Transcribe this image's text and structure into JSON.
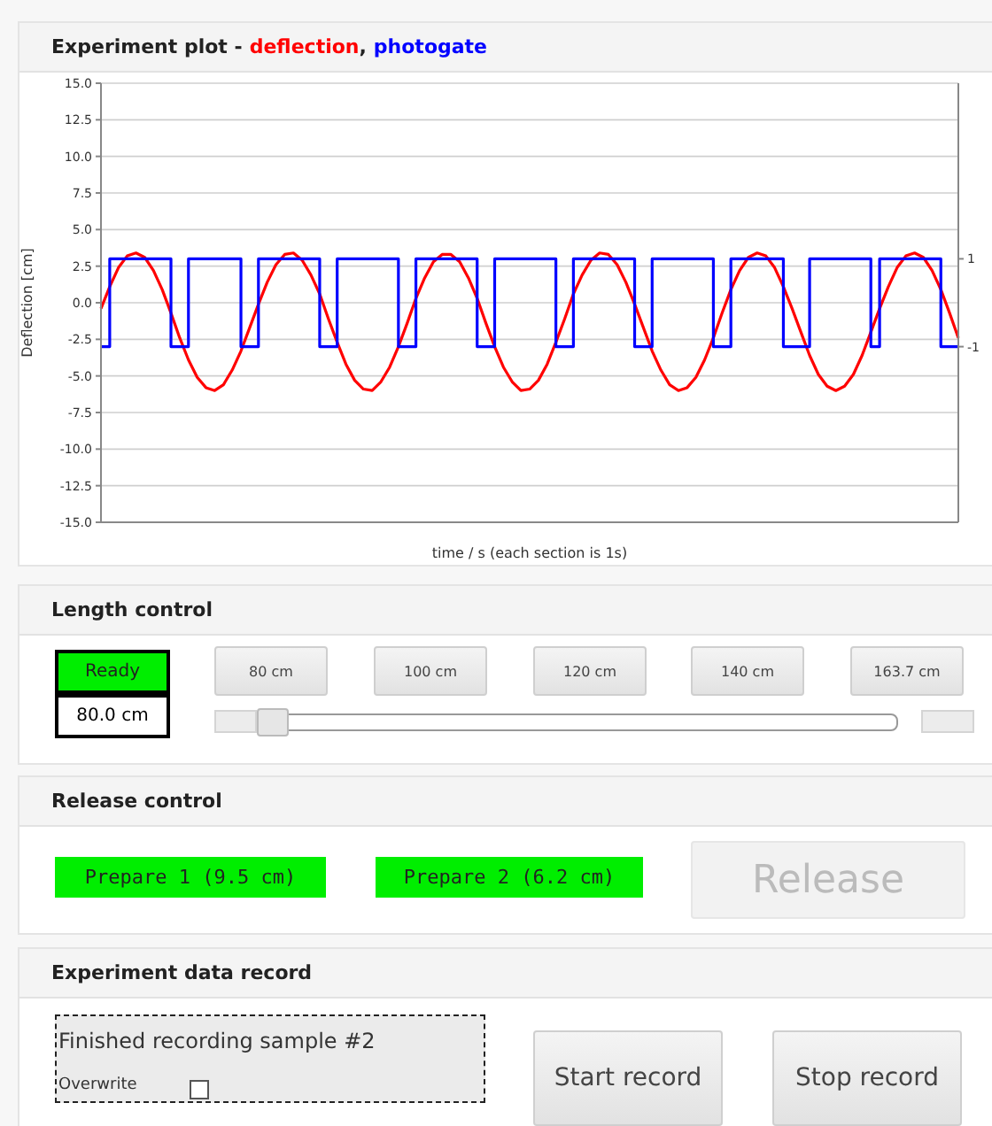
{
  "chart_data": [
    {
      "type": "line",
      "title": "Experiment plot -",
      "xlabel": "time / s (each section is 1s)",
      "ylabel": "Deflection [cm]",
      "categories": [
        null,
        null,
        null,
        null,
        null,
        null,
        null,
        null,
        null,
        null,
        null,
        null,
        null,
        null,
        null,
        null,
        null,
        null,
        null,
        null,
        null,
        null,
        null,
        null,
        null,
        null,
        null,
        null,
        null,
        null,
        null,
        null,
        null,
        null,
        null,
        null,
        null,
        null,
        null,
        null,
        null,
        null,
        null,
        null,
        null,
        null,
        null,
        null,
        null,
        null,
        null,
        null,
        null,
        null,
        null,
        null,
        null,
        null,
        null,
        null,
        null,
        null,
        null,
        null,
        null,
        null,
        null,
        null,
        null,
        null,
        null,
        null,
        null,
        null,
        null,
        null,
        null,
        null,
        null,
        null,
        null,
        null,
        null,
        null,
        null,
        null,
        null,
        null,
        null,
        null,
        null,
        null,
        null,
        null,
        null,
        null,
        null,
        null,
        null
      ],
      "ylim": [
        -15,
        15
      ],
      "yticks": [
        {
          "value": -15,
          "label": "-15.0"
        },
        {
          "value": -12.5,
          "label": "-12.5"
        },
        {
          "value": -10,
          "label": "-10.0"
        },
        {
          "value": -7.5,
          "label": "-7.5"
        },
        {
          "value": -5,
          "label": "-5.0"
        },
        {
          "value": -2.5,
          "label": "-2.5"
        },
        {
          "value": 0,
          "label": "0.0"
        },
        {
          "value": 2.5,
          "label": "2.5"
        },
        {
          "value": 5,
          "label": "5.0"
        },
        {
          "value": 7.5,
          "label": "7.5"
        },
        {
          "value": 10,
          "label": "10.0"
        },
        {
          "value": 12.5,
          "label": "12.5"
        },
        {
          "value": 15,
          "label": "15.0"
        }
      ],
      "y2lim": [
        -5,
        5
      ],
      "y2ticks": [
        -1,
        1
      ],
      "grid": "y",
      "marker": "none",
      "annotations": [
        ","
      ],
      "series": [
        {
          "name": "deflection",
          "type": "line",
          "color": "#ff0000",
          "values": [
            -0.4,
            1.1,
            2.4,
            3.2,
            3.4,
            3.1,
            2.2,
            0.9,
            -0.7,
            -2.4,
            -3.9,
            -5.1,
            -5.8,
            -6.0,
            -5.6,
            -4.6,
            -3.3,
            -1.7,
            -0.1,
            1.4,
            2.6,
            3.3,
            3.4,
            2.9,
            1.9,
            0.6,
            -1.1,
            -2.7,
            -4.2,
            -5.3,
            -5.9,
            -6.0,
            -5.4,
            -4.4,
            -3.0,
            -1.4,
            0.3,
            1.7,
            2.8,
            3.3,
            3.3,
            2.8,
            1.7,
            0.3,
            -1.4,
            -3.0,
            -4.4,
            -5.4,
            -6.0,
            -5.9,
            -5.3,
            -4.2,
            -2.7,
            -1.1,
            0.6,
            1.9,
            2.9,
            3.4,
            3.3,
            2.6,
            1.4,
            -0.1,
            -1.7,
            -3.3,
            -4.6,
            -5.6,
            -6.0,
            -5.8,
            -5.1,
            -3.9,
            -2.4,
            -0.7,
            0.9,
            2.2,
            3.1,
            3.4,
            3.2,
            2.4,
            1.1,
            -0.4,
            -2.0,
            -3.6,
            -4.9,
            -5.7,
            -6.0,
            -5.7,
            -4.9,
            -3.6,
            -2.0,
            -0.4,
            1.1,
            2.4,
            3.2,
            3.4,
            3.1,
            2.2,
            0.9,
            -0.7,
            -2.4
          ]
        },
        {
          "name": "photogate",
          "type": "step",
          "axis": "y2",
          "color": "#0000ff",
          "values": [
            -1,
            1,
            1,
            1,
            1,
            1,
            1,
            1,
            -1,
            -1,
            1,
            1,
            1,
            1,
            1,
            1,
            -1,
            -1,
            1,
            1,
            1,
            1,
            1,
            1,
            1,
            -1,
            -1,
            1,
            1,
            1,
            1,
            1,
            1,
            1,
            -1,
            -1,
            1,
            1,
            1,
            1,
            1,
            1,
            1,
            -1,
            -1,
            1,
            1,
            1,
            1,
            1,
            1,
            1,
            -1,
            -1,
            1,
            1,
            1,
            1,
            1,
            1,
            1,
            -1,
            -1,
            1,
            1,
            1,
            1,
            1,
            1,
            1,
            -1,
            -1,
            1,
            1,
            1,
            1,
            1,
            1,
            -1,
            -1,
            -1,
            1,
            1,
            1,
            1,
            1,
            1,
            1,
            -1,
            1,
            1,
            1,
            1,
            1,
            1,
            1,
            -1,
            -1,
            -1
          ]
        }
      ]
    },
    {
      "type": "other",
      "title": "Length control",
      "annotations": [
        "Ready",
        "80.0 cm",
        "80 cm",
        "100 cm",
        "120 cm",
        "140 cm",
        "163.7 cm"
      ]
    },
    {
      "type": "other",
      "title": "Release control",
      "annotations": [
        "Prepare 1 (9.5 cm)",
        "Prepare 2 (6.2 cm)",
        "Release"
      ]
    },
    {
      "type": "other",
      "title": "Experiment data record",
      "annotations": [
        "Finished recording sample #2",
        "Overwrite",
        "Start record",
        "Stop record"
      ]
    }
  ]
}
